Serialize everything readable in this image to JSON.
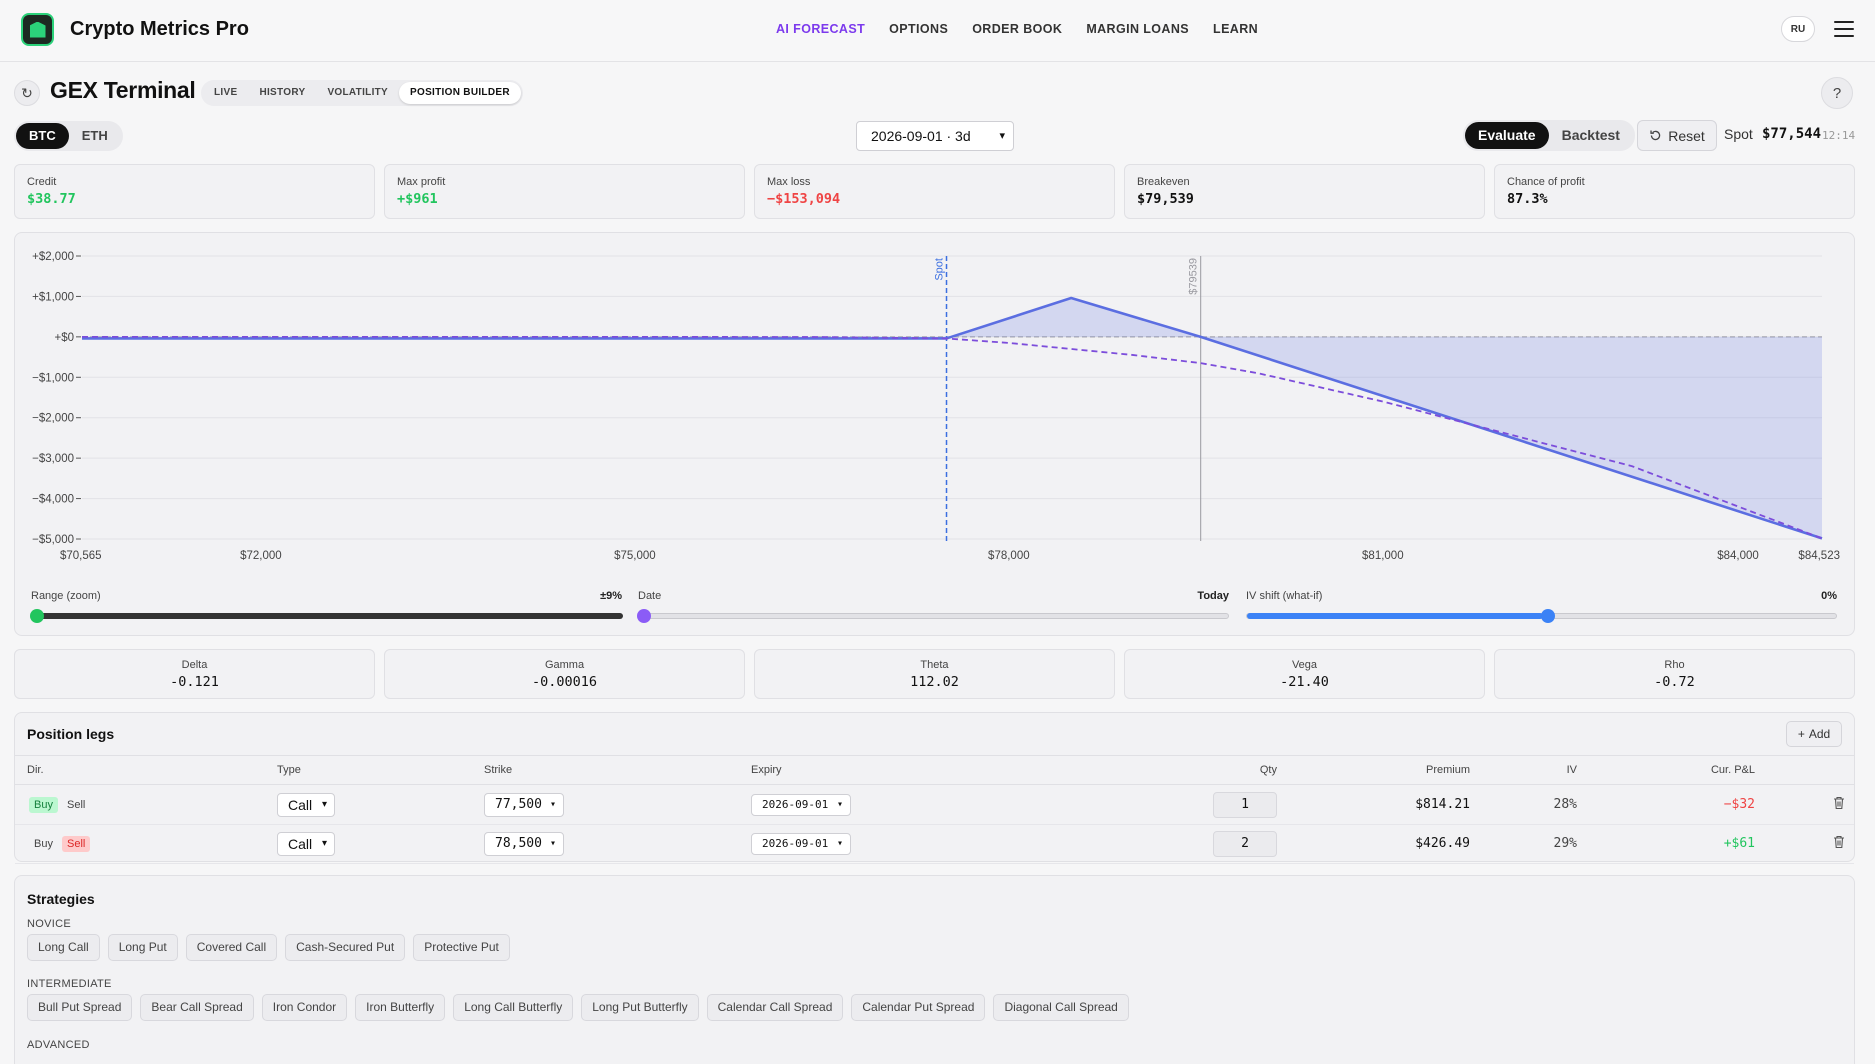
{
  "app": {
    "title": "Crypto Metrics Pro",
    "nav": [
      "AI FORECAST",
      "OPTIONS",
      "ORDER BOOK",
      "MARGIN LOANS",
      "LEARN"
    ],
    "nav_active": "AI FORECAST",
    "lang": "RU"
  },
  "page": {
    "refresh_glyph": "↻",
    "title": "GEX Terminal",
    "help_glyph": "?",
    "modes": [
      "LIVE",
      "HISTORY",
      "VOLATILITY",
      "POSITION BUILDER"
    ],
    "mode_active": "POSITION BUILDER"
  },
  "controls": {
    "assets": [
      "BTC",
      "ETH"
    ],
    "asset_active": "BTC",
    "expiry": "2026-09-01 · 3d",
    "eval_modes": [
      "Evaluate",
      "Backtest"
    ],
    "eval_active": "Evaluate",
    "reset_label": "Reset",
    "spot_label": "Spot",
    "spot_value": "$77,544",
    "spot_time": "12:14"
  },
  "kpis": [
    {
      "label": "Credit",
      "value": "$38.77",
      "tone": "pos"
    },
    {
      "label": "Max profit",
      "value": "+$961",
      "tone": "pos"
    },
    {
      "label": "Max loss",
      "value": "−$153,094",
      "tone": "neg"
    },
    {
      "label": "Breakeven",
      "value": "$79,539",
      "tone": ""
    },
    {
      "label": "Chance of profit",
      "value": "87.3%",
      "tone": ""
    }
  ],
  "chart_data": {
    "type": "line",
    "xlim": [
      70565,
      84523
    ],
    "ylim": [
      -5000,
      2000
    ],
    "x_ticks": [
      {
        "value": 70565,
        "label": "$70,565"
      },
      {
        "value": 72000,
        "label": "$72,000"
      },
      {
        "value": 75000,
        "label": "$75,000"
      },
      {
        "value": 78000,
        "label": "$78,000"
      },
      {
        "value": 81000,
        "label": "$81,000"
      },
      {
        "value": 84000,
        "label": "$84,000"
      },
      {
        "value": 84523,
        "label": "$84,523"
      }
    ],
    "y_ticks": [
      {
        "value": 2000,
        "label": "+$2,000"
      },
      {
        "value": 1000,
        "label": "+$1,000"
      },
      {
        "value": 0,
        "label": "+$0"
      },
      {
        "value": -1000,
        "label": "−$1,000"
      },
      {
        "value": -2000,
        "label": "−$2,000"
      },
      {
        "value": -3000,
        "label": "−$3,000"
      },
      {
        "value": -4000,
        "label": "−$4,000"
      },
      {
        "value": -5000,
        "label": "−$5,000"
      }
    ],
    "grid": true,
    "series": [
      {
        "style": "solid",
        "color": "#5b6ee1",
        "x": [
          70565,
          77500,
          78500,
          79539,
          84523
        ],
        "y": [
          -39,
          -39,
          961,
          0,
          -4985
        ]
      },
      {
        "style": "dashed",
        "color": "#7c4ddb",
        "x": [
          70565,
          75000,
          76500,
          77500,
          78000,
          78500,
          79000,
          79539,
          80000,
          81000,
          82000,
          83000,
          84523
        ],
        "y": [
          0,
          0,
          -5,
          -40,
          -150,
          -300,
          -450,
          -650,
          -900,
          -1600,
          -2400,
          -3200,
          -4985
        ]
      }
    ],
    "markers": [
      {
        "x": 77500,
        "label": "Spot",
        "color": "#3b6fe0"
      },
      {
        "x": 79539,
        "label": "$79539",
        "color": "#9a9aa0"
      }
    ]
  },
  "sliders": [
    {
      "label": "Range (zoom)",
      "value": "±9%",
      "fraction": 0.0,
      "color": "#22c55e"
    },
    {
      "label": "Date",
      "value": "Today",
      "fraction": 0.0,
      "color": "#8b5cf6"
    },
    {
      "label": "IV shift (what-if)",
      "value": "0%",
      "fraction": 0.5,
      "color": "#3b82f6"
    }
  ],
  "greeks": [
    {
      "label": "Delta",
      "value": "-0.121"
    },
    {
      "label": "Gamma",
      "value": "-0.00016"
    },
    {
      "label": "Theta",
      "value": "112.02"
    },
    {
      "label": "Vega",
      "value": "-21.40"
    },
    {
      "label": "Rho",
      "value": "-0.72"
    }
  ],
  "legs": {
    "title": "Position legs",
    "add_label": "Add",
    "columns": [
      "Dir.",
      "Type",
      "Strike",
      "Expiry",
      "Qty",
      "Premium",
      "IV",
      "Cur. P&L"
    ],
    "buy_label": "Buy",
    "sell_label": "Sell",
    "rows": [
      {
        "dir": "buy",
        "type": "Call",
        "strike": "77,500",
        "expiry": "2026-09-01",
        "qty": "1",
        "premium": "$814.21",
        "iv": "28%",
        "pnl": "−$32",
        "pnl_tone": "neg"
      },
      {
        "dir": "sell",
        "type": "Call",
        "strike": "78,500",
        "expiry": "2026-09-01",
        "qty": "2",
        "premium": "$426.49",
        "iv": "29%",
        "pnl": "+$61",
        "pnl_tone": "pos"
      }
    ]
  },
  "strategies": {
    "title": "Strategies",
    "groups": [
      {
        "name": "NOVICE",
        "items": [
          "Long Call",
          "Long Put",
          "Covered Call",
          "Cash-Secured Put",
          "Protective Put"
        ]
      },
      {
        "name": "INTERMEDIATE",
        "items": [
          "Bull Put Spread",
          "Bear Call Spread",
          "Iron Condor",
          "Iron Butterfly",
          "Long Call Butterfly",
          "Long Put Butterfly",
          "Calendar Call Spread",
          "Calendar Put Spread",
          "Diagonal Call Spread"
        ]
      },
      {
        "name": "ADVANCED",
        "items": []
      }
    ]
  }
}
